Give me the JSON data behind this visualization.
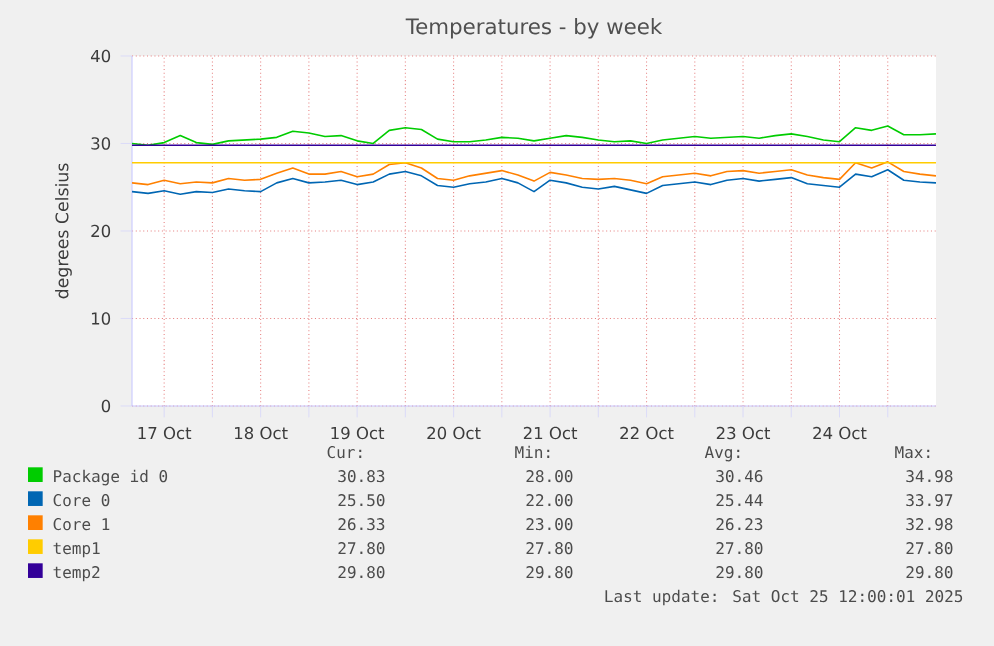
{
  "chart_data": {
    "type": "line",
    "title": "Temperatures - by week",
    "ylabel": "degrees Celsius",
    "x": [
      "2025-10-17T04:00",
      "2025-10-17T08:00",
      "2025-10-17T12:00",
      "2025-10-17T16:00",
      "2025-10-17T20:00",
      "2025-10-18T00:00",
      "2025-10-18T04:00",
      "2025-10-18T08:00",
      "2025-10-18T12:00",
      "2025-10-18T16:00",
      "2025-10-18T20:00",
      "2025-10-19T00:00",
      "2025-10-19T04:00",
      "2025-10-19T08:00",
      "2025-10-19T12:00",
      "2025-10-19T16:00",
      "2025-10-19T20:00",
      "2025-10-20T00:00",
      "2025-10-20T04:00",
      "2025-10-20T08:00",
      "2025-10-20T12:00",
      "2025-10-20T16:00",
      "2025-10-20T20:00",
      "2025-10-21T00:00",
      "2025-10-21T04:00",
      "2025-10-21T08:00",
      "2025-10-21T12:00",
      "2025-10-21T16:00",
      "2025-10-21T20:00",
      "2025-10-22T00:00",
      "2025-10-22T04:00",
      "2025-10-22T08:00",
      "2025-10-22T12:00",
      "2025-10-22T16:00",
      "2025-10-22T20:00",
      "2025-10-23T00:00",
      "2025-10-23T04:00",
      "2025-10-23T08:00",
      "2025-10-23T12:00",
      "2025-10-23T16:00",
      "2025-10-23T20:00",
      "2025-10-24T00:00",
      "2025-10-24T04:00",
      "2025-10-24T08:00",
      "2025-10-24T12:00",
      "2025-10-24T16:00",
      "2025-10-24T20:00",
      "2025-10-25T00:00",
      "2025-10-25T04:00",
      "2025-10-25T08:00",
      "2025-10-25T12:00"
    ],
    "series": [
      {
        "name": "Package id 0",
        "color": "#00cc00",
        "values": [
          30.0,
          29.8,
          30.1,
          30.9,
          30.1,
          29.9,
          30.3,
          30.4,
          30.5,
          30.7,
          31.4,
          31.2,
          30.8,
          30.9,
          30.3,
          30.0,
          31.5,
          31.8,
          31.6,
          30.5,
          30.2,
          30.2,
          30.4,
          30.7,
          30.6,
          30.3,
          30.6,
          30.9,
          30.7,
          30.4,
          30.2,
          30.3,
          30.0,
          30.4,
          30.6,
          30.8,
          30.6,
          30.7,
          30.8,
          30.6,
          30.9,
          31.1,
          30.8,
          30.4,
          30.2,
          31.8,
          31.5,
          32.0,
          31.0,
          31.0,
          31.1
        ]
      },
      {
        "name": "Core 0",
        "color": "#0066b3",
        "values": [
          24.5,
          24.3,
          24.6,
          24.2,
          24.5,
          24.4,
          24.8,
          24.6,
          24.5,
          25.5,
          26.0,
          25.5,
          25.6,
          25.8,
          25.3,
          25.6,
          26.5,
          26.8,
          26.3,
          25.2,
          25.0,
          25.4,
          25.6,
          26.0,
          25.5,
          24.5,
          25.8,
          25.5,
          25.0,
          24.8,
          25.1,
          24.7,
          24.3,
          25.2,
          25.4,
          25.6,
          25.3,
          25.8,
          26.0,
          25.7,
          25.9,
          26.1,
          25.4,
          25.2,
          25.0,
          26.5,
          26.2,
          27.0,
          25.8,
          25.6,
          25.5
        ]
      },
      {
        "name": "Core 1",
        "color": "#ff8000",
        "values": [
          25.5,
          25.3,
          25.8,
          25.4,
          25.6,
          25.5,
          26.0,
          25.8,
          25.9,
          26.6,
          27.2,
          26.5,
          26.5,
          26.8,
          26.2,
          26.5,
          27.6,
          27.8,
          27.2,
          26.0,
          25.8,
          26.3,
          26.6,
          26.9,
          26.4,
          25.7,
          26.7,
          26.4,
          26.0,
          25.9,
          26.0,
          25.8,
          25.4,
          26.2,
          26.4,
          26.6,
          26.3,
          26.8,
          26.9,
          26.6,
          26.8,
          27.0,
          26.4,
          26.1,
          25.9,
          27.8,
          27.2,
          27.9,
          26.8,
          26.5,
          26.3
        ]
      },
      {
        "name": "temp1",
        "color": "#ffcc00",
        "x": [
          "2025-10-17T04:00",
          "2025-10-25T12:00"
        ],
        "values": [
          27.8,
          27.8
        ]
      },
      {
        "name": "temp2",
        "color": "#330099",
        "x": [
          "2025-10-17T04:00",
          "2025-10-25T12:00"
        ],
        "values": [
          29.8,
          29.8
        ]
      }
    ],
    "xlim": [
      "2025-10-17T04:00",
      "2025-10-25T12:00"
    ],
    "xticks": [
      {
        "value": "2025-10-17T12:00",
        "label": "17 Oct"
      },
      {
        "value": "2025-10-18T00:00",
        "label": null
      },
      {
        "value": "2025-10-18T12:00",
        "label": "18 Oct"
      },
      {
        "value": "2025-10-19T00:00",
        "label": null
      },
      {
        "value": "2025-10-19T12:00",
        "label": "19 Oct"
      },
      {
        "value": "2025-10-20T00:00",
        "label": null
      },
      {
        "value": "2025-10-20T12:00",
        "label": "20 Oct"
      },
      {
        "value": "2025-10-21T00:00",
        "label": null
      },
      {
        "value": "2025-10-21T12:00",
        "label": "21 Oct"
      },
      {
        "value": "2025-10-22T00:00",
        "label": null
      },
      {
        "value": "2025-10-22T12:00",
        "label": "22 Oct"
      },
      {
        "value": "2025-10-23T00:00",
        "label": null
      },
      {
        "value": "2025-10-23T12:00",
        "label": "23 Oct"
      },
      {
        "value": "2025-10-24T00:00",
        "label": null
      },
      {
        "value": "2025-10-24T12:00",
        "label": "24 Oct"
      },
      {
        "value": "2025-10-25T00:00",
        "label": null
      }
    ],
    "ylim": [
      0,
      40
    ],
    "yticks": [
      0,
      10,
      20,
      30,
      40
    ],
    "grid": true,
    "legend": "bottom",
    "marker": "none",
    "line_style": "solid",
    "annotations": [
      "Cur:",
      "Min:",
      "Avg:",
      "Max:",
      "30.83",
      "28.00",
      "30.46",
      "34.98",
      "25.50",
      "22.00",
      "25.44",
      "33.97",
      "26.33",
      "23.00",
      "26.23",
      "32.98",
      "27.80",
      "27.80",
      "27.80",
      "27.80",
      "29.80",
      "29.80",
      "29.80",
      "29.80",
      "Last update: Sat Oct 25 12:00:01 2025"
    ]
  }
}
